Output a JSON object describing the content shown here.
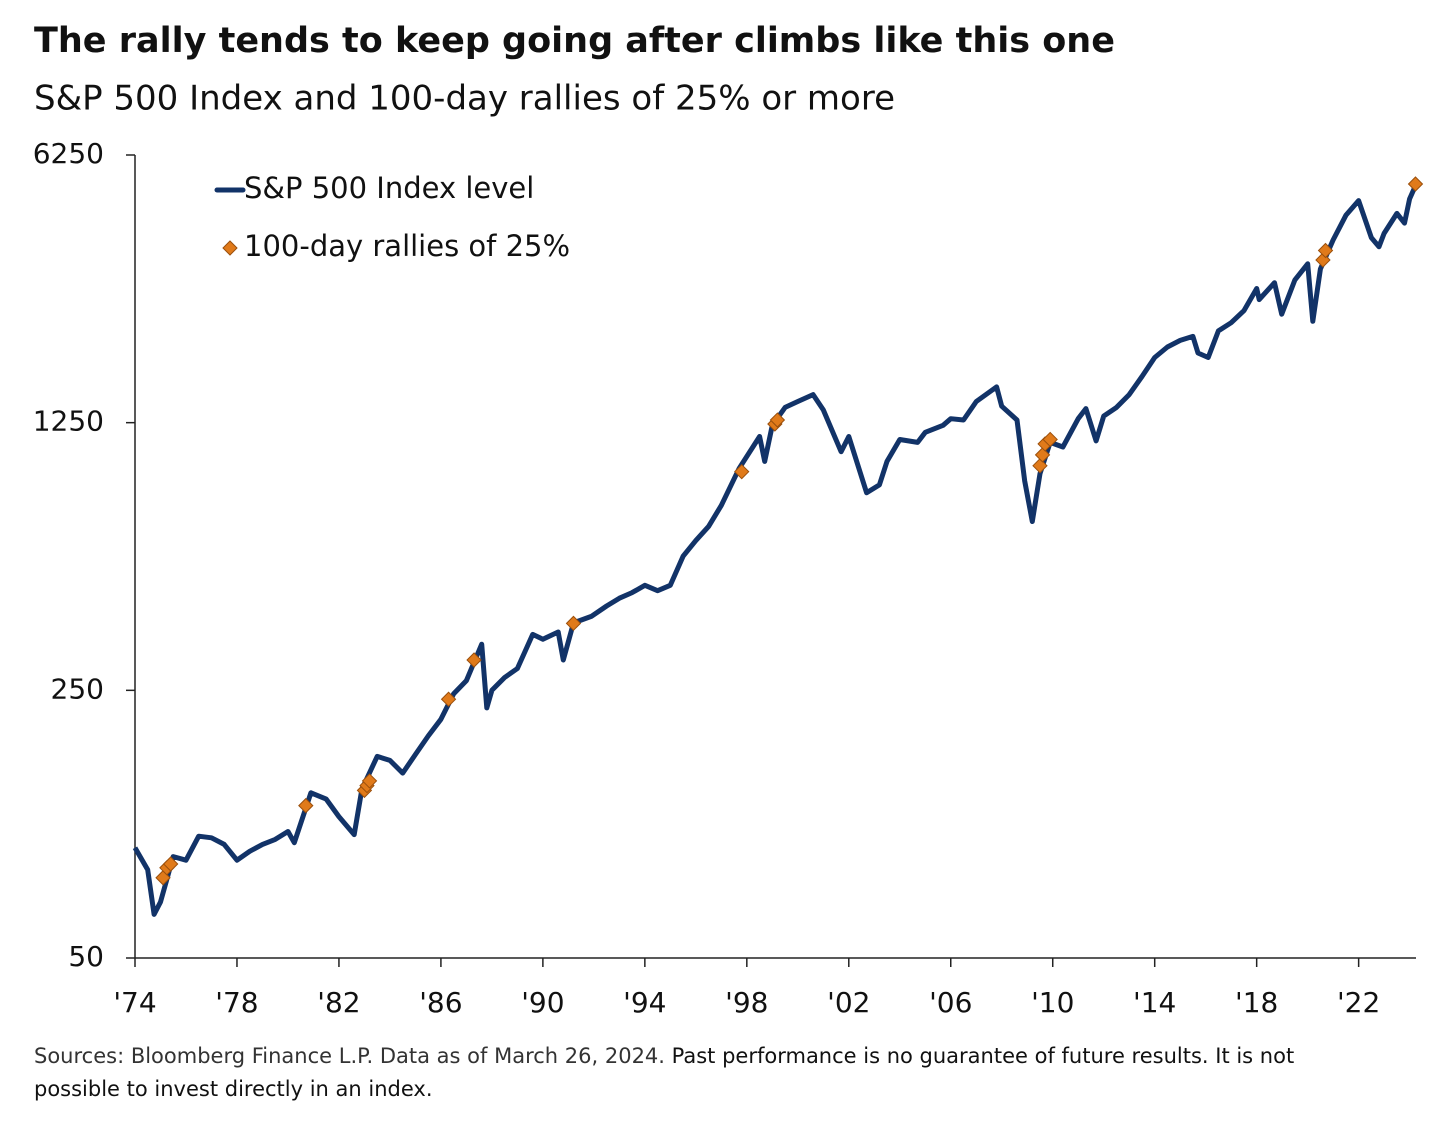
{
  "chart_data": {
    "type": "line",
    "title": "The rally tends to keep going after climbs like this one",
    "subtitle": "S&P 500 Index and 100-day rallies of 25% or more",
    "source": "Sources: Bloomberg Finance L.P. Data as of March 26, 2024.",
    "note": "Past performance is no guarantee of future results. It is not possible to invest directly in an index.",
    "log_scale": true,
    "ylim": [
      50,
      6250
    ],
    "yticks": [
      50,
      250,
      1250,
      6250
    ],
    "xlim": [
      1974,
      2024.25
    ],
    "xticks": [
      {
        "value": 1974,
        "label": "'74"
      },
      {
        "value": 1978,
        "label": "'78"
      },
      {
        "value": 1982,
        "label": "'82"
      },
      {
        "value": 1986,
        "label": "'86"
      },
      {
        "value": 1990,
        "label": "'90"
      },
      {
        "value": 1994,
        "label": "'94"
      },
      {
        "value": 1998,
        "label": "'98"
      },
      {
        "value": 2002,
        "label": "'02"
      },
      {
        "value": 2006,
        "label": "'06"
      },
      {
        "value": 2010,
        "label": "'10"
      },
      {
        "value": 2014,
        "label": "'14"
      },
      {
        "value": 2018,
        "label": "'18"
      },
      {
        "value": 2022,
        "label": "'22"
      }
    ],
    "series": [
      {
        "name": "S&P 500 Index level",
        "color": "#123368",
        "style": "line",
        "x": [
          1974.0,
          1974.5,
          1974.75,
          1975.0,
          1975.5,
          1976.0,
          1976.5,
          1977.0,
          1977.5,
          1978.0,
          1978.5,
          1979.0,
          1979.5,
          1980.0,
          1980.25,
          1980.9,
          1981.5,
          1982.0,
          1982.6,
          1982.9,
          1983.5,
          1984.0,
          1984.5,
          1985.0,
          1985.5,
          1986.0,
          1986.5,
          1987.0,
          1987.6,
          1987.8,
          1988.0,
          1988.5,
          1989.0,
          1989.6,
          1990.0,
          1990.6,
          1990.8,
          1991.2,
          1991.9,
          1992.5,
          1993.0,
          1993.5,
          1994.0,
          1994.5,
          1995.0,
          1995.5,
          1996.0,
          1996.5,
          1997.0,
          1997.7,
          1998.5,
          1998.7,
          1999.0,
          1999.5,
          2000.0,
          2000.6,
          2001.0,
          2001.7,
          2002.0,
          2002.7,
          2003.2,
          2003.5,
          2004.0,
          2004.7,
          2005.0,
          2005.7,
          2006.0,
          2006.5,
          2007.0,
          2007.8,
          2008.0,
          2008.6,
          2008.9,
          2009.2,
          2009.5,
          2009.9,
          2010.4,
          2011.0,
          2011.3,
          2011.7,
          2012.0,
          2012.5,
          2013.0,
          2013.5,
          2014.0,
          2014.5,
          2015.0,
          2015.5,
          2015.7,
          2016.1,
          2016.5,
          2017.0,
          2017.5,
          2018.0,
          2018.1,
          2018.7,
          2018.98,
          2019.5,
          2020.0,
          2020.2,
          2020.5,
          2021.0,
          2021.5,
          2022.0,
          2022.5,
          2022.8,
          2023.0,
          2023.5,
          2023.8,
          2024.0,
          2024.23
        ],
        "values": [
          97,
          85,
          65,
          70,
          92,
          90,
          104,
          103,
          99,
          90,
          95,
          99,
          102,
          107,
          100,
          135,
          130,
          117,
          105,
          138,
          168,
          164,
          152,
          170,
          190,
          210,
          245,
          265,
          330,
          225,
          250,
          270,
          285,
          350,
          340,
          355,
          300,
          375,
          390,
          415,
          435,
          450,
          470,
          455,
          470,
          560,
          615,
          670,
          760,
          950,
          1150,
          990,
          1230,
          1370,
          1420,
          1480,
          1350,
          1050,
          1150,
          820,
          860,
          990,
          1130,
          1110,
          1180,
          1230,
          1280,
          1270,
          1420,
          1550,
          1380,
          1270,
          880,
          690,
          920,
          1110,
          1080,
          1280,
          1360,
          1120,
          1300,
          1370,
          1480,
          1650,
          1850,
          1970,
          2050,
          2100,
          1900,
          1850,
          2170,
          2280,
          2450,
          2800,
          2620,
          2900,
          2400,
          2950,
          3250,
          2300,
          3150,
          3750,
          4350,
          4750,
          3800,
          3600,
          3900,
          4400,
          4150,
          4800,
          5200
        ]
      },
      {
        "name": "100-day rallies of 25%",
        "color": "#e07a1a",
        "style": "marker",
        "x": [
          1975.1,
          1975.25,
          1975.4,
          1980.7,
          1983.0,
          1983.1,
          1983.2,
          1986.3,
          1987.3,
          1991.2,
          1997.8,
          1999.1,
          1999.2,
          2009.5,
          2009.6,
          2009.7,
          2009.9,
          2020.6,
          2020.7,
          2024.23
        ],
        "values": [
          81,
          86,
          88,
          125,
          137,
          141,
          145,
          237,
          300,
          374,
          931,
          1240,
          1270,
          965,
          1030,
          1100,
          1130,
          3325,
          3520,
          5250
        ]
      }
    ]
  }
}
